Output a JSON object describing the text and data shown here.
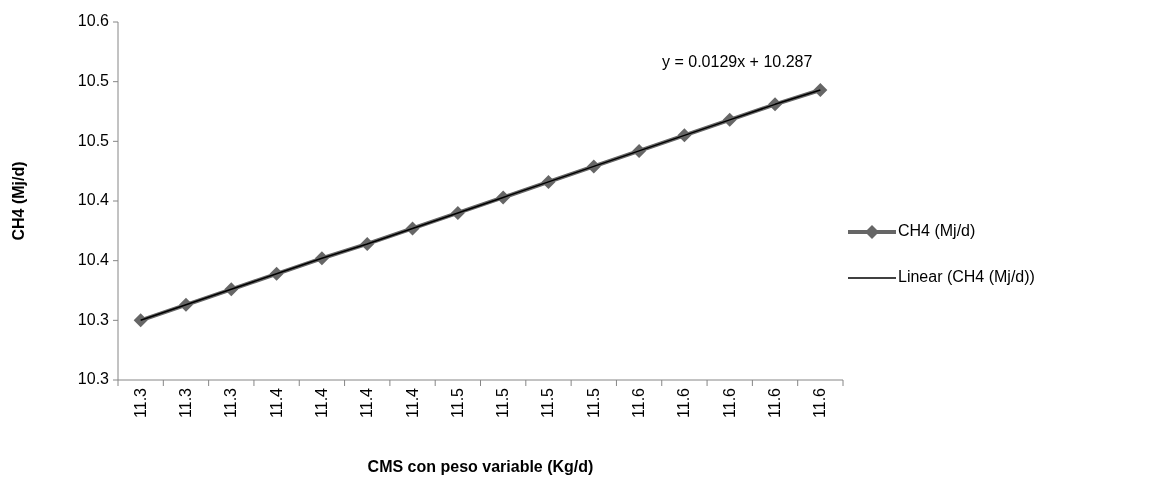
{
  "chart_data": {
    "type": "line",
    "xlabel": "CMS con peso variable (Kg/d)",
    "ylabel": "CH4 (Mj/d)",
    "categories": [
      "11.3",
      "11.3",
      "11.3",
      "11.4",
      "11.4",
      "11.4",
      "11.4",
      "11.5",
      "11.5",
      "11.5",
      "11.5",
      "11.6",
      "11.6",
      "11.6",
      "11.6",
      "11.6"
    ],
    "series": [
      {
        "name": "CH4 (Mj/d)",
        "color": "#666666",
        "marker": "diamond",
        "values": [
          10.3,
          10.313,
          10.326,
          10.339,
          10.352,
          10.364,
          10.377,
          10.39,
          10.403,
          10.416,
          10.429,
          10.442,
          10.455,
          10.468,
          10.481,
          10.493
        ]
      },
      {
        "name": "Linear (CH4 (Mj/d))",
        "color": "#000000",
        "marker": "none",
        "values": [
          10.3,
          10.313,
          10.326,
          10.339,
          10.352,
          10.364,
          10.377,
          10.39,
          10.403,
          10.416,
          10.429,
          10.442,
          10.455,
          10.468,
          10.481,
          10.493
        ]
      }
    ],
    "ylim": [
      10.25,
      10.55
    ],
    "yticks": [
      {
        "value": 10.25,
        "label": "10.3"
      },
      {
        "value": 10.3,
        "label": "10.3"
      },
      {
        "value": 10.35,
        "label": "10.4"
      },
      {
        "value": 10.4,
        "label": "10.4"
      },
      {
        "value": 10.45,
        "label": "10.5"
      },
      {
        "value": 10.5,
        "label": "10.5"
      },
      {
        "value": 10.55,
        "label": "10.6"
      }
    ],
    "annotations": [
      "y = 0.0129x + 10.287"
    ],
    "legend": "right",
    "grid": false
  }
}
